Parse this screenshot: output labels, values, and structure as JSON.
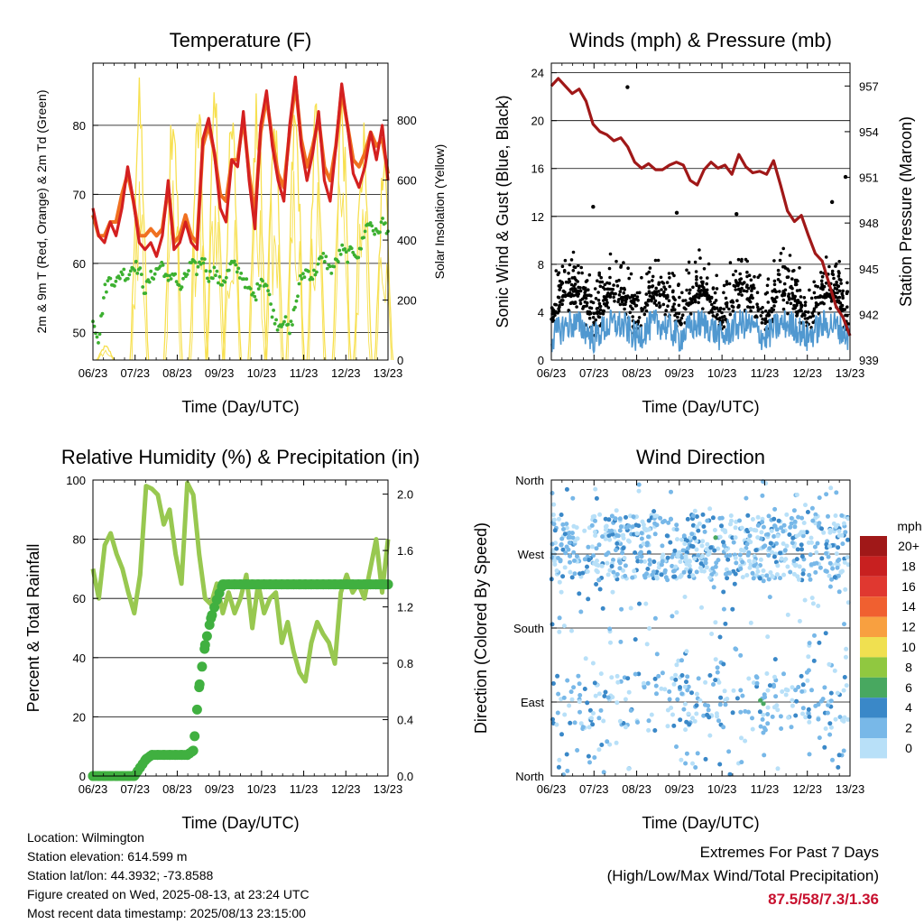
{
  "chart_data": [
    {
      "type": "line",
      "title": "Temperature (F)",
      "xlabel": "Time (Day/UTC)",
      "ylabel": "2m & 9m T (Red, Orange) & 2m Td (Green)",
      "ylabel_right": "Solar Insolation (Yellow)",
      "x_ticks": [
        "06/23",
        "07/23",
        "08/23",
        "09/23",
        "10/23",
        "11/23",
        "12/23",
        "13/23"
      ],
      "ylim": [
        46,
        89
      ],
      "y_ticks": [
        50,
        60,
        70,
        80
      ],
      "y2lim": [
        0,
        990
      ],
      "y2_ticks": [
        0,
        200,
        400,
        600,
        800
      ],
      "grid": true,
      "series": [
        {
          "name": "2m T",
          "color": "#d42020",
          "values": [
            68,
            64,
            63,
            66,
            64,
            68,
            74,
            69,
            63,
            62,
            63,
            61,
            64,
            72,
            62,
            63,
            66,
            63,
            62,
            78,
            81,
            76,
            68,
            66,
            75,
            74,
            82,
            72,
            65,
            80,
            85,
            77,
            72,
            69,
            80,
            87,
            77,
            72,
            76,
            82,
            72,
            69,
            77,
            86,
            80,
            73,
            71,
            74,
            79,
            75,
            80,
            72
          ]
        },
        {
          "name": "9m T",
          "color": "#f07020",
          "values": [
            67,
            64,
            64,
            66,
            66,
            70,
            73,
            69,
            64,
            64,
            65,
            64,
            65,
            71,
            63,
            64,
            67,
            64,
            63,
            77,
            80,
            76,
            70,
            69,
            75,
            75,
            81,
            73,
            67,
            79,
            84,
            78,
            73,
            71,
            79,
            86,
            78,
            74,
            77,
            81,
            74,
            72,
            77,
            85,
            80,
            75,
            74,
            76,
            79,
            77,
            78,
            73
          ]
        },
        {
          "name": "2m Td",
          "color": "#3cb030",
          "values": [
            52,
            49,
            56,
            58,
            57,
            59,
            58,
            60,
            59,
            56,
            58,
            59,
            60,
            57,
            59,
            56,
            58,
            60,
            59,
            61,
            58,
            59,
            57,
            58,
            60,
            59,
            58,
            56,
            55,
            58,
            57,
            53,
            51,
            52,
            50,
            54,
            58,
            59,
            58,
            60,
            61,
            59,
            60,
            62,
            61,
            62,
            61,
            65,
            66,
            64,
            66,
            65
          ]
        },
        {
          "name": "Solar Insolation",
          "color": "#f7e050",
          "axis": "right",
          "peaks": [
            {
              "x": 0.3,
              "v": 50
            },
            {
              "x": 1.1,
              "v": 950
            },
            {
              "x": 1.9,
              "v": 980
            },
            {
              "x": 2.5,
              "v": 900
            },
            {
              "x": 2.9,
              "v": 920
            },
            {
              "x": 3.3,
              "v": 860
            },
            {
              "x": 3.9,
              "v": 920
            },
            {
              "x": 4.3,
              "v": 880
            },
            {
              "x": 4.8,
              "v": 900
            },
            {
              "x": 5.3,
              "v": 920
            },
            {
              "x": 5.9,
              "v": 940
            },
            {
              "x": 6.4,
              "v": 820
            },
            {
              "x": 6.9,
              "v": 700
            }
          ]
        }
      ]
    },
    {
      "type": "scatter",
      "title": "Winds (mph) & Pressure (mb)",
      "xlabel": "Time (Day/UTC)",
      "ylabel": "Sonic Wind & Gust (Blue, Black)",
      "ylabel_right": "Station Pressure (Maroon)",
      "x_ticks": [
        "06/23",
        "07/23",
        "08/23",
        "09/23",
        "10/23",
        "11/23",
        "12/23",
        "13/23"
      ],
      "ylim": [
        0,
        24.8
      ],
      "y_ticks": [
        0,
        4,
        8,
        12,
        16,
        20,
        24
      ],
      "y2lim": [
        939,
        958.5
      ],
      "y2_ticks": [
        939,
        942,
        945,
        948,
        951,
        954,
        957
      ],
      "grid": true,
      "series": [
        {
          "name": "Station Pressure",
          "color": "#a01818",
          "values": [
            957.0,
            957.5,
            957.0,
            956.5,
            956.8,
            956.0,
            954.5,
            954.0,
            953.8,
            953.4,
            953.6,
            953.0,
            952.0,
            951.6,
            951.9,
            951.5,
            951.5,
            951.8,
            952.0,
            951.8,
            950.8,
            950.5,
            951.5,
            952.0,
            951.6,
            951.8,
            951.2,
            952.5,
            951.7,
            951.3,
            951.4,
            951.2,
            952.1,
            950.5,
            948.8,
            948.1,
            948.5,
            947.2,
            946.0,
            945.5,
            944.0,
            942.5,
            941.8,
            940.6
          ]
        },
        {
          "name": "Sonic Wind",
          "color": "#5098d0"
        },
        {
          "name": "Gust",
          "color": "#000000"
        }
      ]
    },
    {
      "type": "line",
      "title": "Relative Humidity (%) & Precipitation (in)",
      "xlabel": "Time (Day/UTC)",
      "ylabel": "Percent & Total Rainfall",
      "x_ticks": [
        "06/23",
        "07/23",
        "08/23",
        "09/23",
        "10/23",
        "11/23",
        "12/23",
        "13/23"
      ],
      "ylim": [
        0,
        100
      ],
      "y_ticks": [
        0,
        20,
        40,
        60,
        80,
        100
      ],
      "y2lim": [
        0,
        2.1
      ],
      "y2_ticks": [
        "0.0",
        "0.4",
        "0.8",
        "1.2",
        "1.6",
        "2.0"
      ],
      "grid": true,
      "series": [
        {
          "name": "Relative Humidity",
          "color": "#98c850",
          "values": [
            70,
            60,
            78,
            82,
            75,
            70,
            62,
            55,
            68,
            98,
            97,
            95,
            85,
            90,
            75,
            65,
            99,
            95,
            75,
            60,
            58,
            65,
            55,
            62,
            55,
            60,
            68,
            50,
            65,
            55,
            60,
            62,
            45,
            52,
            42,
            35,
            32,
            45,
            52,
            48,
            45,
            38,
            62,
            68,
            62,
            65,
            60,
            70,
            80,
            62,
            80
          ]
        },
        {
          "name": "Total Precipitation",
          "color": "#40b040",
          "axis": "right",
          "values": [
            0,
            0,
            0,
            0,
            0,
            0,
            0,
            0,
            0.06,
            0.12,
            0.15,
            0.15,
            0.15,
            0.15,
            0.15,
            0.15,
            0.15,
            0.18,
            0.63,
            0.93,
            1.12,
            1.25,
            1.36,
            1.36,
            1.36,
            1.36,
            1.36,
            1.36,
            1.36,
            1.36,
            1.36,
            1.36,
            1.36,
            1.36,
            1.36,
            1.36,
            1.36,
            1.36,
            1.36,
            1.36,
            1.36,
            1.36,
            1.36,
            1.36,
            1.36,
            1.36,
            1.36,
            1.36,
            1.36,
            1.36,
            1.36
          ]
        }
      ]
    },
    {
      "type": "scatter",
      "title": "Wind Direction",
      "xlabel": "Time (Day/UTC)",
      "ylabel": "Direction (Colored By Speed)",
      "x_ticks": [
        "06/23",
        "07/23",
        "08/23",
        "09/23",
        "10/23",
        "11/23",
        "12/23",
        "13/23"
      ],
      "ylim": [
        0,
        360
      ],
      "y_ticks": [
        "North",
        "East",
        "South",
        "West",
        "North"
      ],
      "grid": true,
      "colorbar": {
        "title": "mph",
        "labels": [
          "20+",
          "18",
          "16",
          "14",
          "12",
          "10",
          "8",
          "6",
          "4",
          "2",
          "0"
        ],
        "colors": [
          "#a01818",
          "#c82020",
          "#e03830",
          "#f06030",
          "#f8a040",
          "#f0e050",
          "#90c840",
          "#48a860",
          "#3a88c8",
          "#78b8e8",
          "#b8e0f8"
        ]
      }
    }
  ],
  "info": {
    "location": "Location: Wilmington",
    "elevation": "Station elevation: 614.599 m",
    "latlon": "Station lat/lon: 44.3932; -73.8588",
    "created": "Figure created on Wed, 2025-08-13, at 23:24 UTC",
    "recent": "Most recent data timestamp: 2025/08/13 23:15:00"
  },
  "extremes": {
    "heading": "Extremes For Past 7 Days",
    "subheading": "(High/Low/Max Wind/Total Precipitation)",
    "value": "87.5/58/7.3/1.36"
  }
}
